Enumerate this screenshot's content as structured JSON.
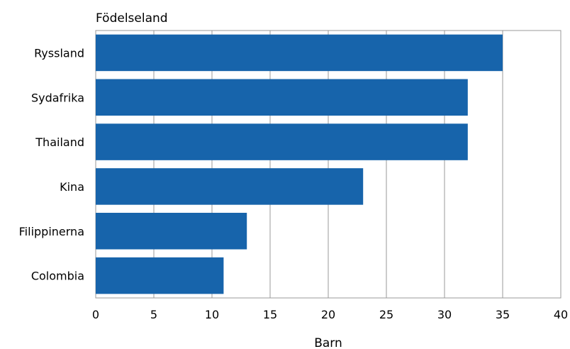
{
  "chart_data": {
    "type": "bar",
    "orientation": "horizontal",
    "categories": [
      "Ryssland",
      "Sydafrika",
      "Thailand",
      "Kina",
      "Filippinerna",
      "Colombia"
    ],
    "values": [
      35,
      32,
      32,
      23,
      13,
      11
    ],
    "xlabel": "Barn",
    "ylabel": "Födelseland",
    "xlim": [
      0,
      40
    ],
    "xticks": [
      0,
      5,
      10,
      15,
      20,
      25,
      30,
      35,
      40
    ],
    "grid": true,
    "bar_color": "#1764ab",
    "grid_color": "#999999",
    "frame_color": "#999999"
  }
}
